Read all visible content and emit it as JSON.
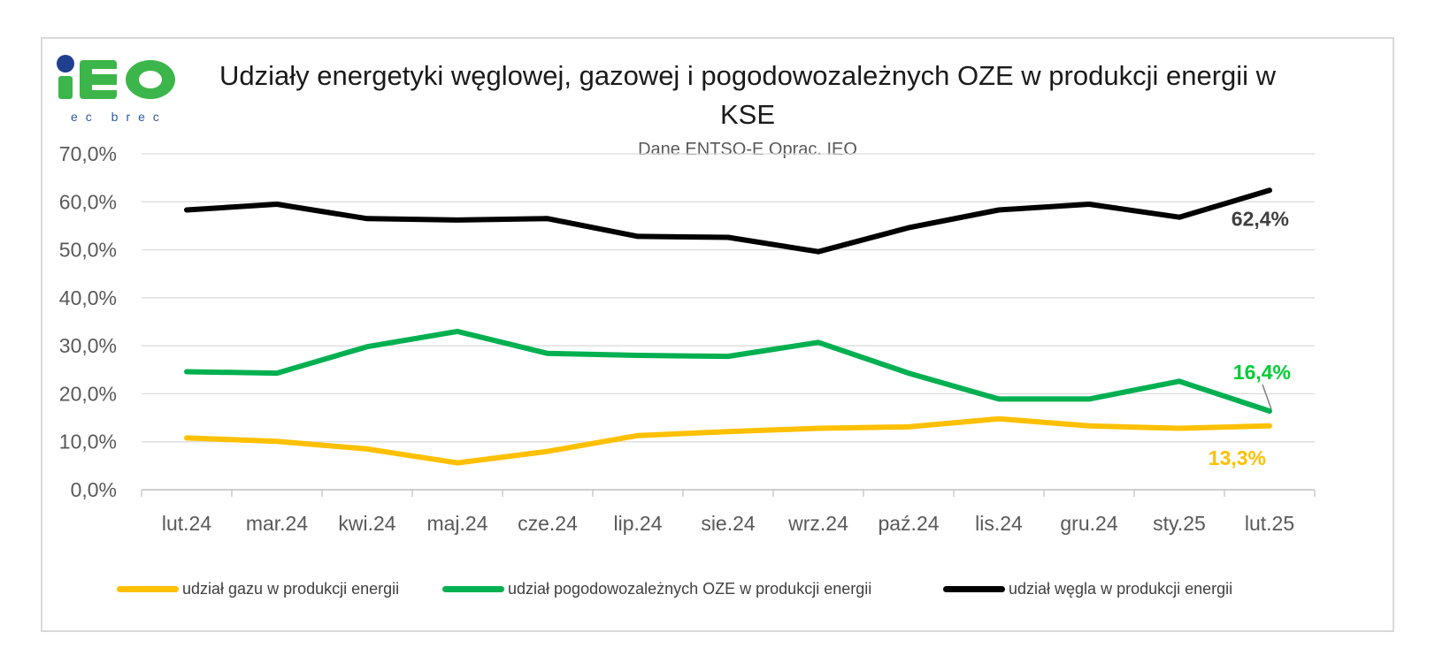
{
  "header": {
    "logo_text": "iEO",
    "logo_subtext": "ec brec",
    "title": "Udziały energetyki węglowej, gazowej i pogodowozależnych OZE w produkcji energii w  KSE",
    "subtitle": "Dane ENTSO-E Oprac. IEO"
  },
  "chart_data": {
    "type": "line",
    "categories": [
      "lut.24",
      "mar.24",
      "kwi.24",
      "maj.24",
      "cze.24",
      "lip.24",
      "sie.24",
      "wrz.24",
      "paź.24",
      "lis.24",
      "gru.24",
      "sty.25",
      "lut.25"
    ],
    "y_ticks": [
      "0,0%",
      "10,0%",
      "20,0%",
      "30,0%",
      "40,0%",
      "50,0%",
      "60,0%",
      "70,0%"
    ],
    "ylim": [
      0,
      70
    ],
    "grid": true,
    "legend_position": "bottom",
    "series": [
      {
        "name": "udział gazu w produkcji energii",
        "color": "#ffc000",
        "values": [
          10.8,
          10.1,
          8.5,
          5.6,
          8.0,
          11.3,
          12.1,
          12.8,
          13.1,
          14.8,
          13.3,
          12.8,
          13.3
        ],
        "end_label": "13,3%"
      },
      {
        "name": "udział pogodowozależnych OZE w produkcji  energii",
        "color": "#00b050",
        "values": [
          24.6,
          24.3,
          29.8,
          33.0,
          28.4,
          28.0,
          27.8,
          30.7,
          24.3,
          18.9,
          18.9,
          22.6,
          16.4
        ],
        "end_label": "16,4%"
      },
      {
        "name": "udział węgla w produkcji energii",
        "color": "#000000",
        "values": [
          58.3,
          59.5,
          56.5,
          56.2,
          56.5,
          52.8,
          52.6,
          49.6,
          54.6,
          58.3,
          59.5,
          56.8,
          62.4
        ],
        "end_label": "62,4%"
      }
    ],
    "label_colors": {
      "gas": "#ffc000",
      "res": "#00cc33",
      "coal": "#404040"
    }
  }
}
